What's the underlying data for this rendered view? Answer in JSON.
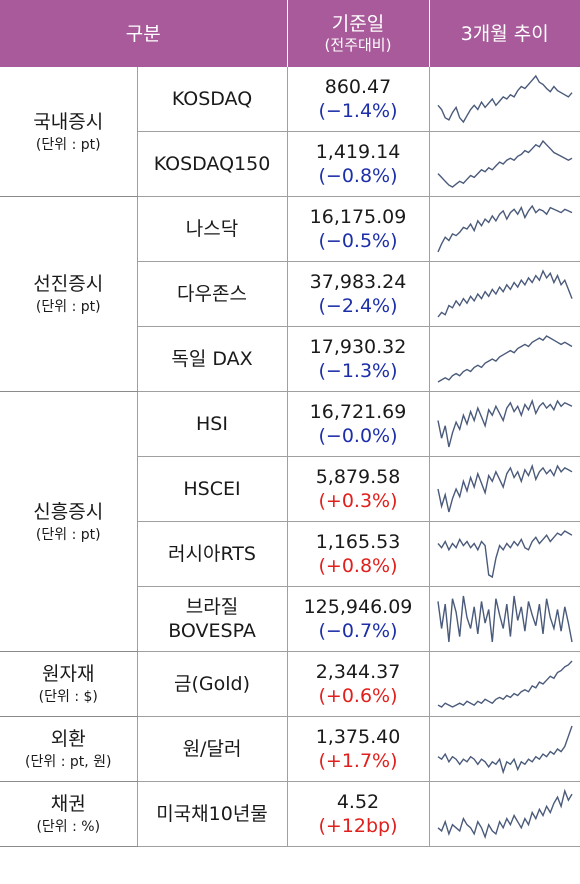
{
  "header": {
    "category": "구분",
    "base_date": "기준일",
    "base_date_sub": "(전주대비)",
    "trend": "3개월 추이"
  },
  "colors": {
    "header_bg": "#a85a9a",
    "negative": "#1c2fa8",
    "positive": "#e0201c",
    "sparkline": "#4a5a7a"
  },
  "groups": [
    {
      "name": "국내증시",
      "unit": "(단위 : pt)",
      "rows": [
        {
          "name": "KOSDAQ",
          "value": "860.47",
          "change": "(−1.4%)",
          "dir": "neg",
          "trend": [
            42,
            38,
            30,
            28,
            35,
            40,
            30,
            26,
            32,
            38,
            42,
            38,
            45,
            40,
            44,
            48,
            42,
            46,
            50,
            48,
            52,
            50,
            56,
            60,
            58,
            62,
            66,
            70,
            64,
            62,
            58,
            55,
            60,
            56,
            54,
            52,
            50,
            54
          ]
        },
        {
          "name": "KOSDAQ150",
          "value": "1,419.14",
          "change": "(−0.8%)",
          "dir": "neg",
          "trend": [
            36,
            32,
            28,
            24,
            22,
            25,
            28,
            26,
            30,
            34,
            32,
            36,
            40,
            38,
            42,
            40,
            44,
            48,
            46,
            50,
            52,
            50,
            54,
            56,
            60,
            58,
            62,
            66,
            64,
            70,
            66,
            62,
            58,
            56,
            54,
            52,
            50,
            52
          ]
        }
      ]
    },
    {
      "name": "선진증시",
      "unit": "(단위 : pt)",
      "rows": [
        {
          "name": "나스닥",
          "value": "16,175.09",
          "change": "(−0.5%)",
          "dir": "neg",
          "trend": [
            20,
            30,
            38,
            34,
            42,
            40,
            44,
            50,
            48,
            54,
            46,
            58,
            52,
            60,
            56,
            64,
            58,
            66,
            70,
            60,
            68,
            72,
            66,
            74,
            62,
            70,
            76,
            68,
            72,
            70,
            66,
            74,
            72,
            70,
            68,
            72,
            70,
            68
          ]
        },
        {
          "name": "다우존스",
          "value": "37,983.24",
          "change": "(−2.4%)",
          "dir": "neg",
          "trend": [
            30,
            34,
            32,
            40,
            38,
            44,
            40,
            46,
            42,
            48,
            44,
            50,
            46,
            52,
            48,
            54,
            50,
            56,
            52,
            58,
            54,
            60,
            56,
            62,
            58,
            64,
            60,
            66,
            62,
            70,
            64,
            68,
            60,
            66,
            58,
            62,
            54,
            46
          ]
        },
        {
          "name": "독일 DAX",
          "value": "17,930.32",
          "change": "(−1.3%)",
          "dir": "neg",
          "trend": [
            22,
            24,
            26,
            24,
            28,
            30,
            28,
            32,
            34,
            32,
            36,
            38,
            36,
            40,
            42,
            44,
            42,
            46,
            48,
            50,
            52,
            50,
            54,
            56,
            58,
            56,
            60,
            62,
            64,
            62,
            66,
            64,
            62,
            60,
            58,
            60,
            58,
            56
          ]
        }
      ]
    },
    {
      "name": "신흥증시",
      "unit": "(단위 : pt)",
      "rows": [
        {
          "name": "HSI",
          "value": "16,721.69",
          "change": "(−0.0%)",
          "dir": "neg",
          "trend": [
            50,
            30,
            44,
            20,
            36,
            48,
            40,
            56,
            46,
            60,
            50,
            64,
            54,
            44,
            62,
            56,
            66,
            58,
            50,
            64,
            70,
            60,
            66,
            56,
            68,
            62,
            72,
            58,
            66,
            70,
            64,
            68,
            62,
            72,
            66,
            70,
            68,
            66
          ]
        },
        {
          "name": "HSCEI",
          "value": "5,879.58",
          "change": "(+0.3%)",
          "dir": "pos",
          "trend": [
            46,
            28,
            40,
            22,
            36,
            46,
            38,
            54,
            44,
            58,
            48,
            62,
            52,
            42,
            60,
            54,
            64,
            56,
            48,
            62,
            68,
            58,
            64,
            54,
            66,
            60,
            70,
            56,
            64,
            68,
            62,
            66,
            60,
            70,
            64,
            68,
            66,
            64
          ]
        },
        {
          "name": "러시아RTS",
          "value": "1,165.53",
          "change": "(+0.8%)",
          "dir": "pos",
          "trend": [
            54,
            50,
            56,
            48,
            54,
            50,
            58,
            52,
            56,
            50,
            54,
            48,
            56,
            52,
            24,
            22,
            40,
            52,
            48,
            54,
            50,
            56,
            52,
            58,
            50,
            48,
            56,
            60,
            54,
            58,
            62,
            56,
            60,
            64,
            62,
            66,
            64,
            62
          ]
        },
        {
          "name": "브라질\nBOVESPA",
          "value": "125,946.09",
          "change": "(−0.7%)",
          "dir": "neg",
          "trend": [
            60,
            40,
            58,
            30,
            62,
            52,
            34,
            64,
            48,
            40,
            56,
            36,
            60,
            44,
            54,
            30,
            62,
            50,
            40,
            58,
            34,
            64,
            46,
            56,
            38,
            60,
            50,
            42,
            58,
            36,
            62,
            48,
            40,
            54,
            38,
            56,
            44,
            30
          ]
        }
      ]
    },
    {
      "name": "원자재",
      "unit": "(단위 : $)",
      "rows": [
        {
          "name": "금(Gold)",
          "value": "2,344.37",
          "change": "(+0.6%)",
          "dir": "pos",
          "trend": [
            24,
            22,
            26,
            24,
            22,
            24,
            26,
            24,
            28,
            26,
            24,
            28,
            26,
            30,
            28,
            26,
            30,
            32,
            30,
            34,
            32,
            36,
            34,
            38,
            40,
            38,
            44,
            42,
            48,
            46,
            50,
            54,
            52,
            58,
            60,
            64,
            66,
            70
          ]
        }
      ]
    },
    {
      "name": "외환",
      "unit": "(단위 : pt, 원)",
      "rows": [
        {
          "name": "원/달러",
          "value": "1,375.40",
          "change": "(+1.7%)",
          "dir": "pos",
          "trend": [
            42,
            40,
            44,
            38,
            42,
            40,
            36,
            40,
            38,
            42,
            40,
            36,
            40,
            38,
            34,
            38,
            36,
            40,
            30,
            38,
            36,
            40,
            32,
            38,
            36,
            40,
            38,
            42,
            40,
            44,
            42,
            46,
            44,
            48,
            46,
            50,
            58,
            66
          ]
        }
      ]
    },
    {
      "name": "채권",
      "unit": "(단위 : %)",
      "rows": [
        {
          "name": "미국채10년물",
          "value": "4.52",
          "change": "(+12bp)",
          "dir": "pos",
          "trend": [
            40,
            38,
            44,
            36,
            42,
            40,
            38,
            46,
            42,
            40,
            36,
            44,
            40,
            34,
            42,
            38,
            36,
            44,
            40,
            46,
            42,
            48,
            44,
            40,
            46,
            42,
            50,
            46,
            52,
            48,
            54,
            50,
            56,
            60,
            54,
            64,
            58,
            62
          ]
        }
      ]
    }
  ]
}
